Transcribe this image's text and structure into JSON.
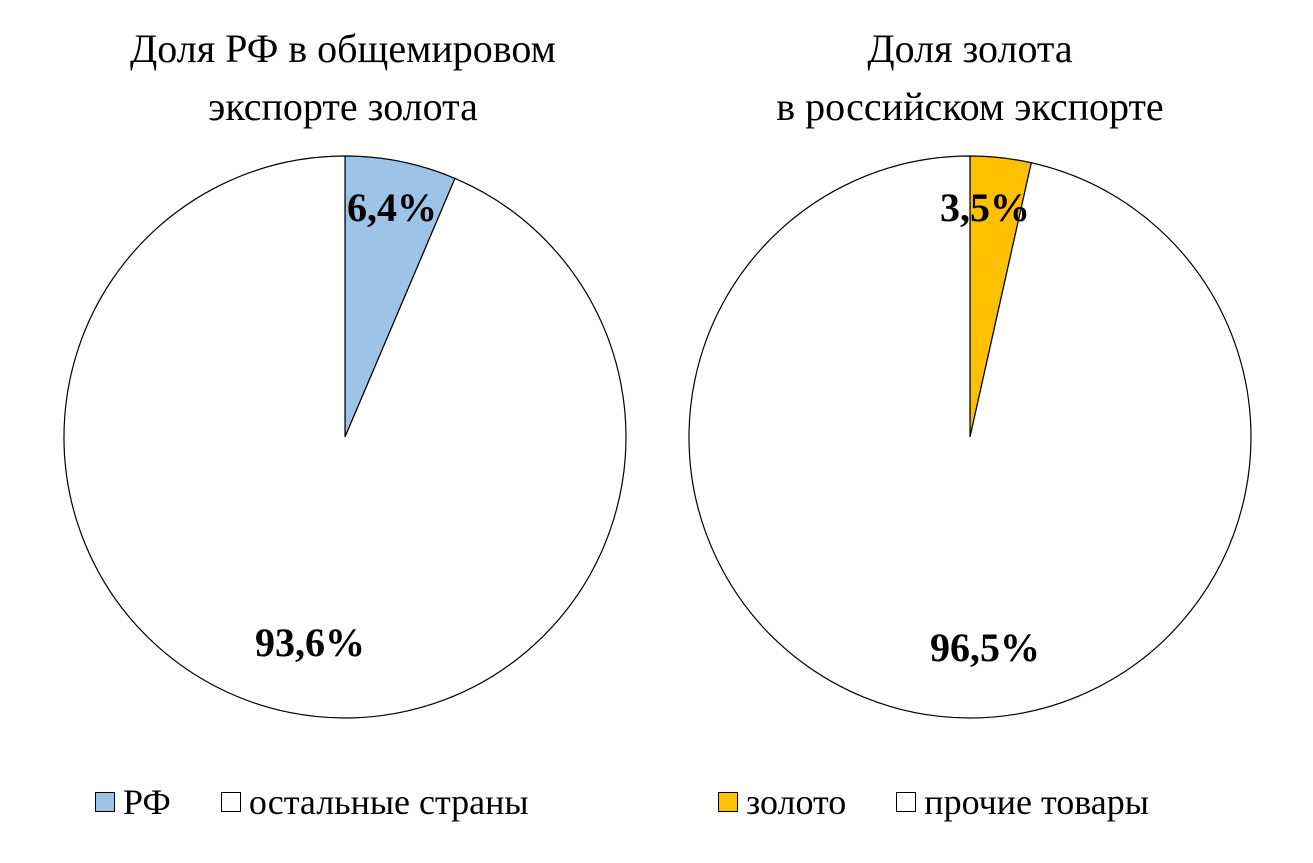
{
  "chart_data": [
    {
      "type": "pie",
      "title": [
        "Доля РФ в общемировом",
        "экспорте золота"
      ],
      "slices": [
        {
          "name": "РФ",
          "value": 6.4,
          "label": "6,4%",
          "color": "#9DC3E6"
        },
        {
          "name": "остальные страны",
          "value": 93.6,
          "label": "93,6%",
          "color": "#FFFFFF"
        }
      ],
      "legend": "bottom"
    },
    {
      "type": "pie",
      "title": [
        "Доля золота",
        "в российском экспорте"
      ],
      "slices": [
        {
          "name": "золото",
          "value": 3.5,
          "label": "3,5%",
          "color": "#FFC000"
        },
        {
          "name": "прочие товары",
          "value": 96.5,
          "label": "96,5%",
          "color": "#FFFFFF"
        }
      ],
      "legend": "bottom"
    }
  ]
}
